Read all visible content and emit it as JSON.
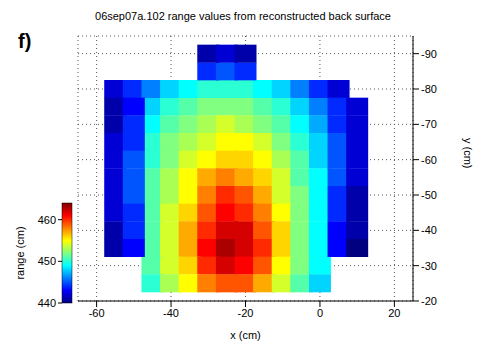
{
  "chart_data": {
    "type": "scatter",
    "panel_label": "f)",
    "title": "06sep07a.102 range values from reconstructed back surface",
    "xlabel": "x (cm)",
    "ylabel": "y (cm)",
    "range_label": "range (cm)",
    "xlim": [
      -65,
      25
    ],
    "xticks": [
      -60,
      -40,
      -20,
      0,
      20
    ],
    "ylim": [
      -95,
      -20
    ],
    "yticks": [
      -90,
      -80,
      -70,
      -60,
      -50,
      -40,
      -30,
      -20
    ],
    "range_lim": [
      440,
      464
    ],
    "range_ticks": [
      440,
      450,
      460
    ],
    "grid": true,
    "marker": "square",
    "x": [
      -45,
      -40,
      -35,
      -30,
      -25,
      -20,
      -15,
      -10,
      -5,
      0,
      -45,
      -40,
      -35,
      -30,
      -25,
      -20,
      -15,
      -10,
      -5,
      0,
      -45,
      -40,
      -35,
      -30,
      -25,
      -20,
      -15,
      -10,
      -5,
      0,
      -45,
      -40,
      -35,
      -30,
      -25,
      -20,
      -15,
      -10,
      -5,
      0,
      -45,
      -40,
      -35,
      -30,
      -25,
      -20,
      -15,
      -10,
      -5,
      0,
      -45,
      -40,
      -35,
      -30,
      -25,
      -20,
      -15,
      -10,
      -5,
      0,
      -45,
      -40,
      -35,
      -30,
      -25,
      -20,
      -15,
      -10,
      -5,
      0,
      -45,
      -40,
      -35,
      -30,
      -25,
      -20,
      -15,
      -10,
      -5,
      0,
      -45,
      -40,
      -35,
      -30,
      -25,
      -20,
      -15,
      -10,
      -5,
      0,
      -45,
      -40,
      -35,
      -30,
      -25,
      -20,
      -15,
      -10,
      -5,
      0,
      -45,
      -40,
      -35,
      -30,
      -25,
      -20,
      -15,
      -10,
      -5,
      0,
      -55,
      -50,
      -45,
      -40,
      -35,
      -30,
      -25,
      -20,
      -15,
      -10,
      -5,
      0,
      5,
      -55,
      -55,
      -55,
      -55,
      -55,
      -55,
      -55,
      -55,
      -55,
      -50,
      -50,
      -50,
      -50,
      -50,
      -50,
      -50,
      -50,
      -50,
      5,
      5,
      5,
      5,
      5,
      5,
      5,
      5,
      5,
      10,
      10,
      10,
      10,
      10,
      10,
      10,
      10,
      10,
      -30,
      -25,
      -20,
      -30,
      -25,
      -20
    ],
    "values": [
      -75,
      -75,
      -75,
      -75,
      -75,
      -75,
      -75,
      -75,
      -75,
      -75,
      -70,
      -70,
      -70,
      -70,
      -70,
      -70,
      -70,
      -70,
      -70,
      -70,
      -65,
      -65,
      -65,
      -65,
      -65,
      -65,
      -65,
      -65,
      -65,
      -65,
      -60,
      -60,
      -60,
      -60,
      -60,
      -60,
      -60,
      -60,
      -60,
      -60,
      -55,
      -55,
      -55,
      -55,
      -55,
      -55,
      -55,
      -55,
      -55,
      -55,
      -50,
      -50,
      -50,
      -50,
      -50,
      -50,
      -50,
      -50,
      -50,
      -50,
      -45,
      -45,
      -45,
      -45,
      -45,
      -45,
      -45,
      -45,
      -45,
      -45,
      -40,
      -40,
      -40,
      -40,
      -40,
      -40,
      -40,
      -40,
      -40,
      -40,
      -35,
      -35,
      -35,
      -35,
      -35,
      -35,
      -35,
      -35,
      -35,
      -35,
      -30,
      -30,
      -30,
      -30,
      -30,
      -30,
      -30,
      -30,
      -30,
      -30,
      -25,
      -25,
      -25,
      -25,
      -25,
      -25,
      -25,
      -25,
      -25,
      -25,
      -80,
      -80,
      -80,
      -80,
      -80,
      -80,
      -80,
      -80,
      -80,
      -80,
      -80,
      -80,
      -80,
      -75,
      -70,
      -65,
      -60,
      -55,
      -50,
      -45,
      -40,
      -35,
      -75,
      -70,
      -65,
      -60,
      -55,
      -50,
      -45,
      -40,
      -35,
      -75,
      -70,
      -65,
      -60,
      -55,
      -50,
      -45,
      -40,
      -35,
      -75,
      -70,
      -65,
      -60,
      -55,
      -50,
      -45,
      -40,
      -35,
      -85,
      -85,
      -85,
      -90,
      -90,
      -90
    ],
    "range": [
      448,
      450,
      451,
      452,
      452,
      452,
      451,
      450,
      448,
      446,
      449,
      451,
      452,
      453,
      454,
      453,
      452,
      451,
      449,
      447,
      450,
      452,
      453,
      454,
      455,
      455,
      454,
      452,
      450,
      448,
      450,
      452,
      454,
      455,
      456,
      456,
      455,
      453,
      451,
      448,
      451,
      453,
      455,
      457,
      458,
      457,
      456,
      454,
      451,
      449,
      451,
      453,
      455,
      458,
      460,
      459,
      457,
      454,
      452,
      449,
      451,
      454,
      456,
      459,
      461,
      460,
      458,
      455,
      452,
      449,
      451,
      454,
      457,
      460,
      462,
      462,
      459,
      456,
      452,
      449,
      451,
      454,
      457,
      461,
      463,
      462,
      460,
      456,
      452,
      449,
      451,
      454,
      456,
      460,
      462,
      461,
      459,
      455,
      452,
      449,
      450,
      453,
      455,
      458,
      459,
      459,
      457,
      454,
      451,
      448,
      442,
      444,
      446,
      448,
      449,
      450,
      450,
      450,
      449,
      448,
      446,
      444,
      442,
      441,
      441,
      442,
      442,
      442,
      442,
      442,
      441,
      441,
      443,
      444,
      444,
      445,
      445,
      445,
      444,
      444,
      443,
      444,
      444,
      445,
      445,
      445,
      444,
      444,
      443,
      443,
      442,
      442,
      442,
      442,
      442,
      441,
      441,
      441,
      440,
      444,
      445,
      444,
      441,
      442,
      441
    ]
  }
}
